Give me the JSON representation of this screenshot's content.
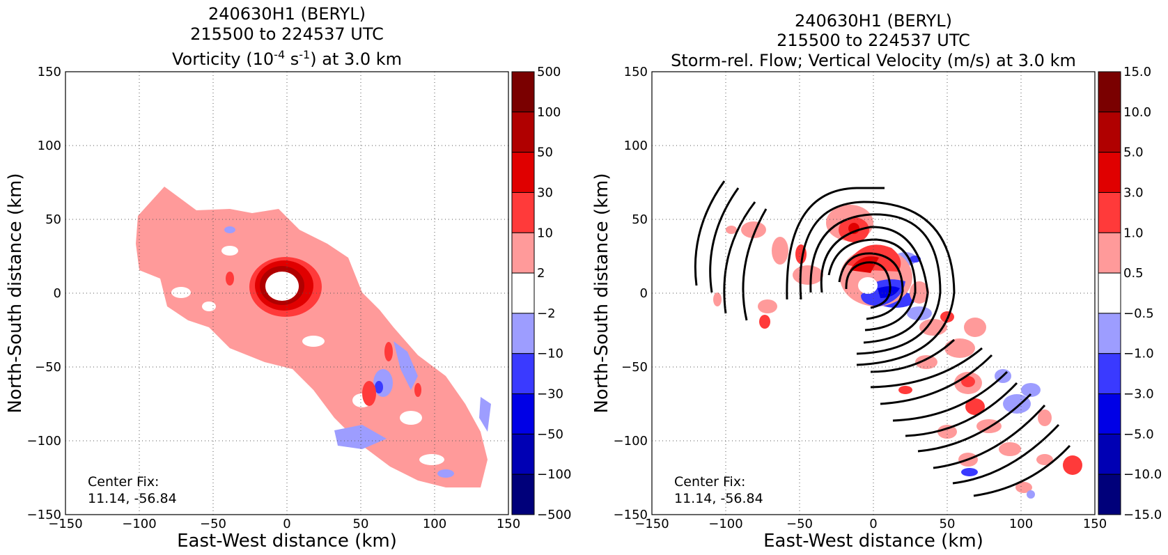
{
  "chart_data": [
    {
      "type": "heatmap",
      "title_lines": [
        "240630H1 (BERYL)",
        "215500 to 224537 UTC"
      ],
      "title_line3": {
        "prefix": "Vorticity (10",
        "exp1": "-4",
        "mid": " s",
        "exp2": "-1",
        "suffix": ") at 3.0 km"
      },
      "xlabel": "East-West distance (km)",
      "ylabel": "North-South distance (km)",
      "xlim": [
        -150,
        150
      ],
      "ylim": [
        -150,
        150
      ],
      "xticks": [
        "−150",
        "−100",
        "−50",
        "0",
        "50",
        "100",
        "150"
      ],
      "yticks": [
        "−150",
        "−100",
        "−50",
        "0",
        "50",
        "100",
        "150"
      ],
      "grid": true,
      "annotation": {
        "line1": "Center Fix:",
        "line2": "11.14, -56.84"
      },
      "colorbar": {
        "labels": [
          "500",
          "100",
          "50",
          "30",
          "10",
          "2",
          "−2",
          "−10",
          "−30",
          "−50",
          "−100",
          "−500"
        ],
        "colors": [
          "#7a0000",
          "#b00000",
          "#e00000",
          "#ff3a3a",
          "#ff9a9a",
          "#ffffff",
          "#9d9dff",
          "#3a3aff",
          "#0000e6",
          "#0000b4",
          "#00007a"
        ]
      }
    },
    {
      "type": "heatmap",
      "title_lines": [
        "240630H1 (BERYL)",
        "215500 to 224537 UTC",
        "Storm-rel. Flow; Vertical Velocity (m/s) at 3.0 km"
      ],
      "xlabel": "East-West distance (km)",
      "ylabel": "North-South distance (km)",
      "xlim": [
        -150,
        150
      ],
      "ylim": [
        -150,
        150
      ],
      "xticks": [
        "−150",
        "−100",
        "−50",
        "0",
        "50",
        "100",
        "150"
      ],
      "yticks": [
        "−150",
        "−100",
        "−50",
        "0",
        "50",
        "100",
        "150"
      ],
      "grid": true,
      "annotation": {
        "line1": "Center Fix:",
        "line2": "11.14, -56.84"
      },
      "colorbar": {
        "labels": [
          "15.0",
          "10.0",
          "5.0",
          "3.0",
          "1.0",
          "0.5",
          "−0.5",
          "−1.0",
          "−3.0",
          "−5.0",
          "−10.0",
          "−15.0"
        ],
        "colors": [
          "#7a0000",
          "#b00000",
          "#e00000",
          "#ff3a3a",
          "#ff9a9a",
          "#ffffff",
          "#9d9dff",
          "#3a3aff",
          "#0000e6",
          "#0000b4",
          "#00007a"
        ]
      }
    }
  ]
}
